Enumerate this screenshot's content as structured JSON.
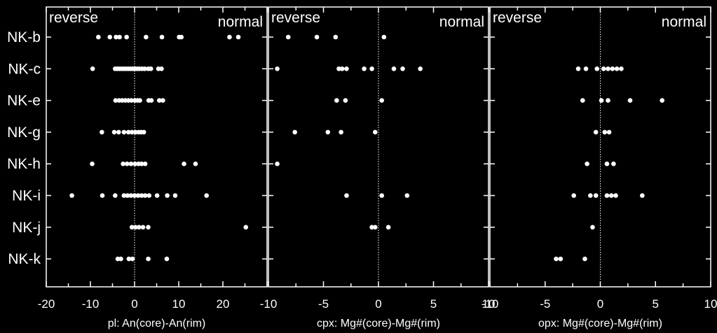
{
  "chart_data": [
    {
      "type": "scatter",
      "panel": "pl",
      "categories": [
        "NK-b",
        "NK-c",
        "NK-e",
        "NK-g",
        "NK-h",
        "NK-i",
        "NK-j",
        "NK-k"
      ],
      "xlim": [
        -20,
        30
      ],
      "xticks": [
        "-20",
        "-10",
        "0",
        "10",
        "20"
      ],
      "xlabel": "pl: An(core)-An(rim)",
      "region_left": "reverse",
      "region_right": "normal",
      "points": [
        {
          "cat": "NK-b",
          "x": [
            -8.2,
            -5.6,
            -4.2,
            -3.4,
            -1.8,
            2.6,
            6.2,
            10.1,
            10.6,
            21.5,
            23.5
          ]
        },
        {
          "cat": "NK-c",
          "x": [
            -9.5,
            -4.4,
            -3.9,
            -3.4,
            -2.9,
            -2.4,
            -1.9,
            -1.4,
            -0.9,
            -0.4,
            0.1,
            0.6,
            1.1,
            1.7,
            2.3,
            3.1,
            3.7,
            5.4,
            6.1
          ]
        },
        {
          "cat": "NK-e",
          "x": [
            -4.3,
            -3.5,
            -2.8,
            -2.1,
            -1.4,
            -0.7,
            0.1,
            0.7,
            1.2,
            3.2,
            3.8,
            5.6,
            6.4
          ]
        },
        {
          "cat": "NK-g",
          "x": [
            -7.4,
            -4.6,
            -3.6,
            -2.4,
            -1.4,
            -0.6,
            0.2,
            0.9,
            1.5,
            2.1
          ]
        },
        {
          "cat": "NK-h",
          "x": [
            -9.6,
            -2.6,
            -1.7,
            -0.8,
            0.1,
            0.9,
            1.6,
            2.4,
            11.2,
            13.8
          ]
        },
        {
          "cat": "NK-i",
          "x": [
            -14.2,
            -7.3,
            -4.4,
            -2.4,
            -1.6,
            -0.8,
            0.0,
            0.8,
            1.6,
            2.4,
            3.3,
            5.1,
            7.4,
            9.2,
            16.3
          ]
        },
        {
          "cat": "NK-j",
          "x": [
            -0.6,
            0.2,
            1.0,
            1.9,
            3.1,
            25.2
          ]
        },
        {
          "cat": "NK-k",
          "x": [
            -3.8,
            -3.1,
            -1.3,
            -0.5,
            3.1,
            7.3
          ]
        }
      ]
    },
    {
      "type": "scatter",
      "panel": "cpx",
      "categories": [
        "NK-b",
        "NK-c",
        "NK-e",
        "NK-g",
        "NK-h",
        "NK-i",
        "NK-j",
        "NK-k"
      ],
      "xlim": [
        -10,
        10
      ],
      "xticks": [
        "-10",
        "-5",
        "0",
        "5",
        "10"
      ],
      "xlabel": "cpx: Mg#(core)-Mg#(rim)",
      "region_left": "reverse",
      "region_right": "normal",
      "points": [
        {
          "cat": "NK-b",
          "x": [
            -8.2,
            -5.6,
            -3.9,
            0.5
          ]
        },
        {
          "cat": "NK-c",
          "x": [
            -9.2,
            -3.6,
            -3.3,
            -2.9,
            -1.3,
            -0.6,
            1.4,
            2.2,
            3.8
          ]
        },
        {
          "cat": "NK-e",
          "x": [
            -3.8,
            -3.0,
            0.3
          ]
        },
        {
          "cat": "NK-g",
          "x": [
            -7.6,
            -4.6,
            -3.4,
            -0.3
          ]
        },
        {
          "cat": "NK-h",
          "x": [
            -9.2
          ]
        },
        {
          "cat": "NK-i",
          "x": [
            -2.9,
            0.3,
            2.6
          ]
        },
        {
          "cat": "NK-j",
          "x": [
            -0.6,
            -0.3,
            0.9
          ]
        },
        {
          "cat": "NK-k",
          "x": []
        }
      ]
    },
    {
      "type": "scatter",
      "panel": "opx",
      "categories": [
        "NK-b",
        "NK-c",
        "NK-e",
        "NK-g",
        "NK-h",
        "NK-i",
        "NK-j",
        "NK-k"
      ],
      "xlim": [
        -10,
        10
      ],
      "xticks": [
        "-10",
        "-5",
        "0",
        "5",
        "10"
      ],
      "xlabel": "opx: Mg#(core)-Mg#(rim)",
      "region_left": "reverse",
      "region_right": "normal",
      "points": [
        {
          "cat": "NK-b",
          "x": []
        },
        {
          "cat": "NK-c",
          "x": [
            -2.0,
            -1.3,
            -0.3,
            0.3,
            0.7,
            1.1,
            1.5,
            1.9
          ]
        },
        {
          "cat": "NK-e",
          "x": [
            -1.6,
            0.1,
            0.7,
            2.7,
            5.6
          ]
        },
        {
          "cat": "NK-g",
          "x": [
            -0.4,
            0.4,
            0.8
          ]
        },
        {
          "cat": "NK-h",
          "x": [
            -1.2,
            0.6,
            1.2
          ]
        },
        {
          "cat": "NK-i",
          "x": [
            -2.4,
            -0.9,
            -0.4,
            0.6,
            1.0,
            1.4,
            3.8
          ]
        },
        {
          "cat": "NK-j",
          "x": [
            -0.7
          ]
        },
        {
          "cat": "NK-k",
          "x": [
            -4.0,
            -3.6,
            -1.4
          ]
        }
      ]
    }
  ],
  "colors": {
    "background": "#000000",
    "foreground": "#ffffff"
  }
}
